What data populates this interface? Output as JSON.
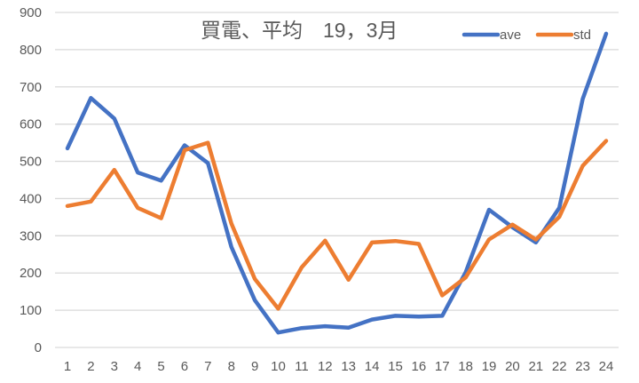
{
  "chart_data": {
    "type": "line",
    "title": "買電、平均　19，3月",
    "xlabel": "",
    "ylabel": "",
    "x": [
      1,
      2,
      3,
      4,
      5,
      6,
      7,
      8,
      9,
      10,
      11,
      12,
      13,
      14,
      15,
      16,
      17,
      18,
      19,
      20,
      21,
      22,
      23,
      24
    ],
    "categories": [
      "1",
      "2",
      "3",
      "4",
      "5",
      "6",
      "7",
      "8",
      "9",
      "10",
      "11",
      "12",
      "13",
      "14",
      "15",
      "16",
      "17",
      "18",
      "19",
      "20",
      "21",
      "22",
      "23",
      "24"
    ],
    "ylim": [
      0,
      900
    ],
    "yticks": [
      0,
      100,
      200,
      300,
      400,
      500,
      600,
      700,
      800,
      900
    ],
    "ytick_labels": [
      "0",
      "100",
      "200",
      "300",
      "400",
      "500",
      "600",
      "700",
      "800",
      "900"
    ],
    "grid": true,
    "legend_position": "top-right",
    "series": [
      {
        "name": "ave",
        "color": "#4472C4",
        "values": [
          535,
          670,
          615,
          470,
          448,
          543,
          495,
          270,
          127,
          40,
          52,
          57,
          53,
          75,
          85,
          83,
          85,
          202,
          370,
          323,
          282,
          375,
          668,
          843
        ]
      },
      {
        "name": "std",
        "color": "#ED7D31",
        "values": [
          380,
          392,
          477,
          375,
          347,
          530,
          550,
          333,
          184,
          104,
          215,
          287,
          182,
          282,
          286,
          278,
          140,
          188,
          290,
          330,
          290,
          351,
          488,
          555
        ]
      }
    ]
  },
  "legend": {
    "items": [
      {
        "label": "ave",
        "color": "#4472C4"
      },
      {
        "label": "std",
        "color": "#ED7D31"
      }
    ]
  },
  "colors": {
    "grid": "#D9D9D9",
    "text": "#595959",
    "background": "#FFFFFF"
  }
}
